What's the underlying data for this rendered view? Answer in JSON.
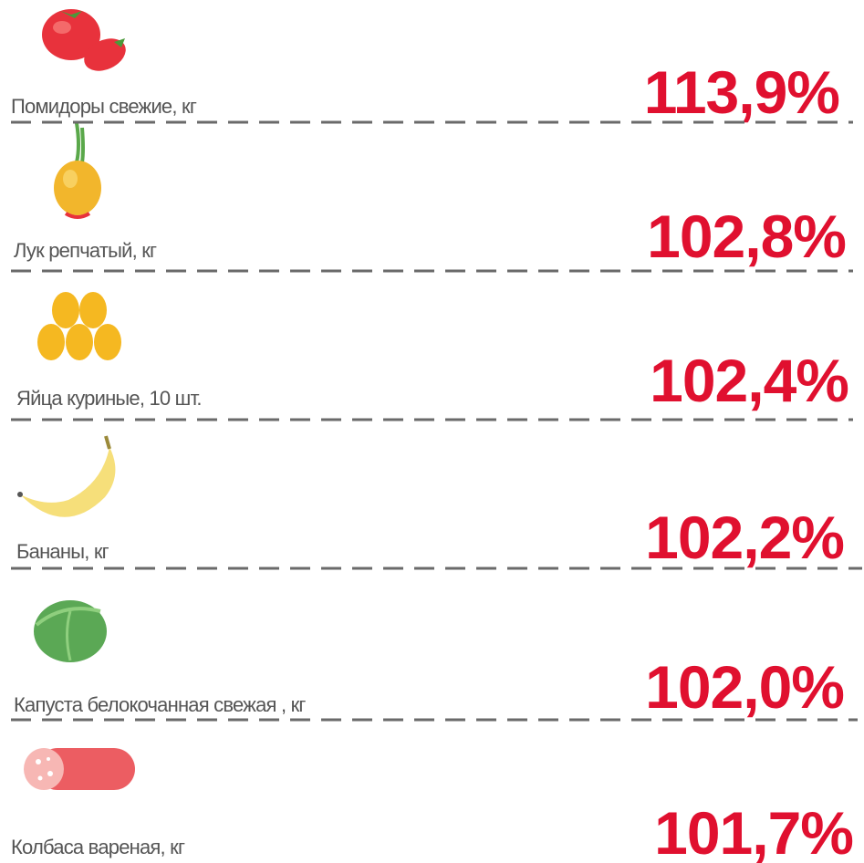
{
  "items": [
    {
      "label": "Помидоры свежие, кг",
      "value": "113,9%"
    },
    {
      "label": "Лук репчатый, кг",
      "value": "102,8%"
    },
    {
      "label": "Яйца куриные, 10 шт.",
      "value": "102,4%"
    },
    {
      "label": "Бананы, кг",
      "value": "102,2%"
    },
    {
      "label": "Капуста белокочанная свежая , кг",
      "value": "102,0%"
    },
    {
      "label": "Колбаса вареная, кг",
      "value": "101,7%"
    }
  ]
}
